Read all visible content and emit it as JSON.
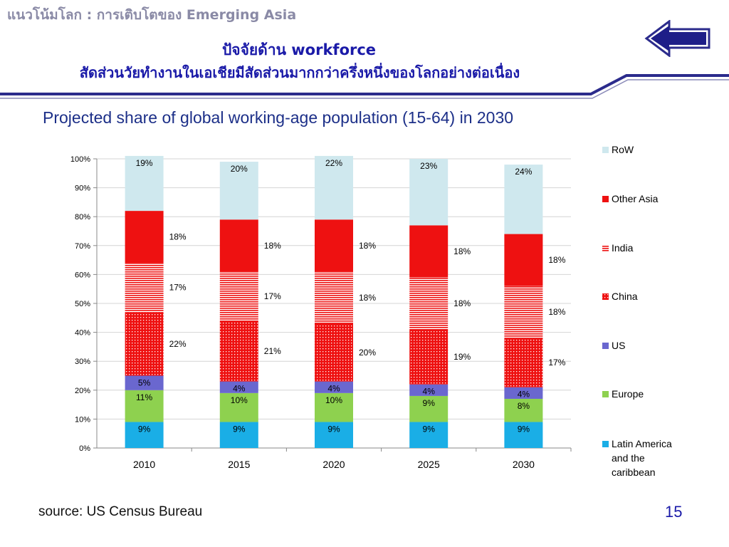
{
  "header": {
    "topic": "แนวโน้มโลก : การเติบโตของ Emerging Asia",
    "title": "ปัจจัยด้าน workforce",
    "subtitle": "สัดส่วนวัยทำงานในเอเชียมีสัดส่วนมากกว่าครึ่งหนึ่งของโลกอย่างต่อเนื่อง",
    "back_icon": "left-arrow-icon",
    "accent_color": "#2b2b8c"
  },
  "chart_data": {
    "type": "bar",
    "stacked": true,
    "title": "Projected share of global working-age population (15-64) in 2030",
    "categories": [
      "2010",
      "2015",
      "2020",
      "2025",
      "2030"
    ],
    "ylim": [
      0,
      100
    ],
    "y_ticks": [
      "0%",
      "10%",
      "20%",
      "30%",
      "40%",
      "50%",
      "60%",
      "70%",
      "80%",
      "90%",
      "100%"
    ],
    "grid": true,
    "legend_position": "right",
    "series": [
      {
        "name": "Latin America and the caribbean",
        "color": "#1aaee6",
        "pattern": "solid",
        "values": [
          9,
          9,
          9,
          9,
          9
        ],
        "labels": [
          "9%",
          "9%",
          "9%",
          "9%",
          "9%"
        ]
      },
      {
        "name": "Europe",
        "color": "#8ed14f",
        "pattern": "solid",
        "values": [
          11,
          10,
          10,
          9,
          8
        ],
        "labels": [
          "11%",
          "10%",
          "10%",
          "9%",
          "8%"
        ]
      },
      {
        "name": "US",
        "color": "#6a67cf",
        "pattern": "solid",
        "values": [
          5,
          4,
          4,
          4,
          4
        ],
        "labels": [
          "5%",
          "4%",
          "4%",
          "4%",
          "4%"
        ]
      },
      {
        "name": "China",
        "color": "#ee1111",
        "pattern": "dots",
        "values": [
          22,
          21,
          20,
          19,
          17
        ],
        "labels": [
          "22%",
          "21%",
          "20%",
          "19%",
          "17%"
        ]
      },
      {
        "name": "India",
        "color": "#ee1111",
        "pattern": "hlines",
        "values": [
          17,
          17,
          18,
          18,
          18
        ],
        "labels": [
          "17%",
          "17%",
          "18%",
          "18%",
          "18%"
        ]
      },
      {
        "name": "Other Asia",
        "color": "#ee1111",
        "pattern": "solid",
        "values": [
          18,
          18,
          18,
          18,
          18
        ],
        "labels": [
          "18%",
          "18%",
          "18%",
          "18%",
          "18%"
        ]
      },
      {
        "name": "RoW",
        "color": "#cfe8ee",
        "pattern": "solid",
        "values": [
          19,
          20,
          22,
          23,
          24
        ],
        "labels": [
          "19%",
          "20%",
          "22%",
          "23%",
          "24%"
        ]
      }
    ]
  },
  "footer": {
    "source": "source: US Census Bureau",
    "page_number": "15"
  }
}
